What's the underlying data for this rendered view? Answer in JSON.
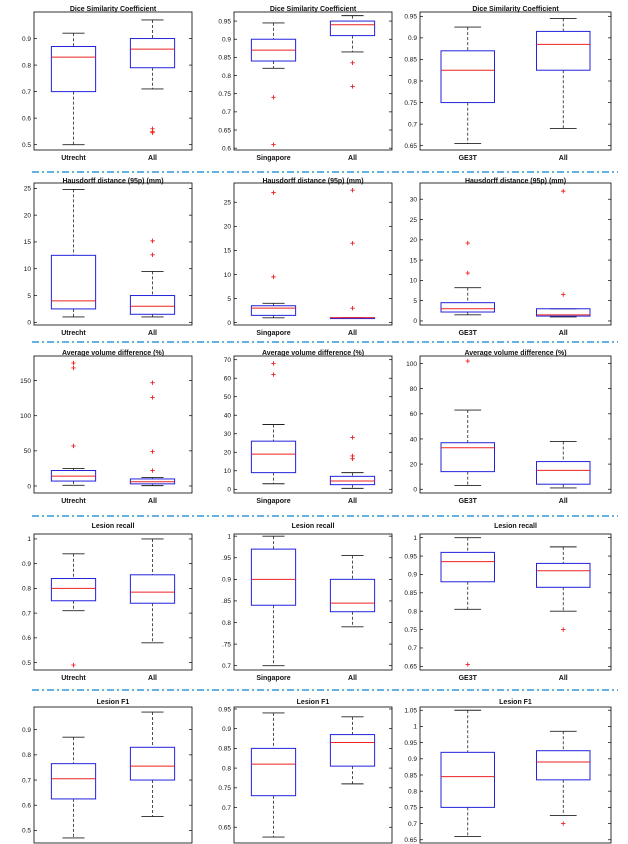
{
  "chart_data": [
    {
      "type": "box",
      "title": "Dice Similarity Coefficient",
      "categories": [
        "Utrecht",
        "All"
      ],
      "ylim": [
        0.48,
        1.0
      ],
      "yticks": [
        0.5,
        0.6,
        0.7,
        0.8,
        0.9
      ],
      "ytick_labels": [
        "0.5",
        "0.6",
        "0.7",
        "0.8",
        "0.9"
      ],
      "boxes": [
        {
          "whisker_low": 0.5,
          "q1": 0.7,
          "median": 0.83,
          "q3": 0.87,
          "whisker_high": 0.92,
          "outliers": []
        },
        {
          "whisker_low": 0.71,
          "q1": 0.79,
          "median": 0.86,
          "q3": 0.9,
          "whisker_high": 0.97,
          "outliers": [
            0.56,
            0.55,
            0.545
          ]
        }
      ]
    },
    {
      "type": "box",
      "title": "Dice Similarity Coefficient",
      "categories": [
        "Singapore",
        "All"
      ],
      "ylim": [
        0.595,
        0.975
      ],
      "yticks": [
        0.6,
        0.65,
        0.7,
        0.75,
        0.8,
        0.85,
        0.9,
        0.95
      ],
      "ytick_labels": [
        "0.6",
        "0.65",
        "0.7",
        "0.75",
        "0.8",
        "0.85",
        "0.9",
        "0.95"
      ],
      "boxes": [
        {
          "whisker_low": 0.82,
          "q1": 0.84,
          "median": 0.87,
          "q3": 0.9,
          "whisker_high": 0.945,
          "outliers": [
            0.74,
            0.61
          ]
        },
        {
          "whisker_low": 0.865,
          "q1": 0.91,
          "median": 0.94,
          "q3": 0.95,
          "whisker_high": 0.965,
          "outliers": [
            0.835,
            0.77
          ]
        }
      ]
    },
    {
      "type": "box",
      "title": "Dice Similarity Coefficient",
      "categories": [
        "GE3T",
        "All"
      ],
      "ylim": [
        0.64,
        0.96
      ],
      "yticks": [
        0.65,
        0.7,
        0.75,
        0.8,
        0.85,
        0.9,
        0.95
      ],
      "ytick_labels": [
        "0.65",
        "0.7",
        "0.75",
        "0.8",
        "0.85",
        "0.9",
        "0.95"
      ],
      "boxes": [
        {
          "whisker_low": 0.655,
          "q1": 0.75,
          "median": 0.825,
          "q3": 0.87,
          "whisker_high": 0.925,
          "outliers": []
        },
        {
          "whisker_low": 0.69,
          "q1": 0.825,
          "median": 0.885,
          "q3": 0.915,
          "whisker_high": 0.945,
          "outliers": []
        }
      ]
    },
    {
      "type": "box",
      "title": "Hausdorff distance (95p) (mm)",
      "categories": [
        "Utrecht",
        "All"
      ],
      "ylim": [
        -0.5,
        26
      ],
      "yticks": [
        0,
        5,
        10,
        15,
        20,
        25
      ],
      "ytick_labels": [
        "0",
        "5",
        "10",
        "15",
        "20",
        "25"
      ],
      "boxes": [
        {
          "whisker_low": 1,
          "q1": 2.5,
          "median": 4,
          "q3": 12.5,
          "whisker_high": 24.8,
          "outliers": []
        },
        {
          "whisker_low": 1,
          "q1": 1.5,
          "median": 3,
          "q3": 5,
          "whisker_high": 9.5,
          "outliers": [
            15.2,
            12.6
          ]
        }
      ]
    },
    {
      "type": "box",
      "title": "Hausdorff distance (95p) (mm)",
      "categories": [
        "Singapore",
        "All"
      ],
      "ylim": [
        -0.5,
        29
      ],
      "yticks": [
        0,
        5,
        10,
        15,
        20,
        25
      ],
      "ytick_labels": [
        "0",
        "5",
        "10",
        "15",
        "20",
        "25"
      ],
      "boxes": [
        {
          "whisker_low": 1,
          "q1": 1.5,
          "median": 3,
          "q3": 3.5,
          "whisker_high": 4,
          "outliers": [
            27,
            9.5
          ]
        },
        {
          "whisker_low": 1,
          "q1": 1,
          "median": 1,
          "q3": 1,
          "whisker_high": 1,
          "outliers": [
            27.5,
            16.5,
            3
          ]
        }
      ]
    },
    {
      "type": "box",
      "title": "Hausdorff distance (95p) (mm)",
      "categories": [
        "GE3T",
        "All"
      ],
      "ylim": [
        -1,
        34
      ],
      "yticks": [
        0,
        5,
        10,
        15,
        20,
        25,
        30
      ],
      "ytick_labels": [
        "0",
        "5",
        "10",
        "15",
        "20",
        "25",
        "30"
      ],
      "boxes": [
        {
          "whisker_low": 1.5,
          "q1": 2.2,
          "median": 3,
          "q3": 4.5,
          "whisker_high": 8.2,
          "outliers": [
            19.2,
            11.8
          ]
        },
        {
          "whisker_low": 1,
          "q1": 1.2,
          "median": 1.5,
          "q3": 3,
          "whisker_high": 3,
          "outliers": [
            32,
            6.5
          ]
        }
      ]
    },
    {
      "type": "box",
      "title": "Average volume difference  (%)",
      "categories": [
        "Utrecht",
        "All"
      ],
      "ylim": [
        -10,
        185
      ],
      "yticks": [
        0,
        50,
        100,
        150
      ],
      "ytick_labels": [
        "0",
        "50",
        "100",
        "150"
      ],
      "boxes": [
        {
          "whisker_low": 1,
          "q1": 7,
          "median": 14,
          "q3": 22,
          "whisker_high": 25,
          "outliers": [
            175,
            168,
            57
          ]
        },
        {
          "whisker_low": 0.5,
          "q1": 3,
          "median": 6,
          "q3": 10,
          "whisker_high": 12,
          "outliers": [
            147,
            126,
            49,
            22
          ]
        }
      ]
    },
    {
      "type": "box",
      "title": "Average volume difference  (%)",
      "categories": [
        "Singapore",
        "All"
      ],
      "ylim": [
        -2,
        72
      ],
      "yticks": [
        0,
        10,
        20,
        30,
        40,
        50,
        60,
        70
      ],
      "ytick_labels": [
        "0",
        "10",
        "20",
        "30",
        "40",
        "50",
        "60",
        "70"
      ],
      "boxes": [
        {
          "whisker_low": 3,
          "q1": 9,
          "median": 19,
          "q3": 26,
          "whisker_high": 35,
          "outliers": [
            68,
            62
          ]
        },
        {
          "whisker_low": 0.5,
          "q1": 2.5,
          "median": 4.5,
          "q3": 7,
          "whisker_high": 9,
          "outliers": [
            28,
            18,
            16.5
          ]
        }
      ]
    },
    {
      "type": "box",
      "title": "Average volume difference  (%)",
      "categories": [
        "GE3T",
        "All"
      ],
      "ylim": [
        -3,
        106
      ],
      "yticks": [
        0,
        20,
        40,
        60,
        80,
        100
      ],
      "ytick_labels": [
        "0",
        "20",
        "40",
        "60",
        "80",
        "100"
      ],
      "boxes": [
        {
          "whisker_low": 3,
          "q1": 14,
          "median": 33,
          "q3": 37,
          "whisker_high": 63,
          "outliers": [
            102
          ]
        },
        {
          "whisker_low": 1,
          "q1": 4,
          "median": 15,
          "q3": 22,
          "whisker_high": 38,
          "outliers": []
        }
      ]
    },
    {
      "type": "box",
      "title": "Lesion recall",
      "categories": [
        "Utrecht",
        "All"
      ],
      "ylim": [
        0.47,
        1.02
      ],
      "yticks": [
        0.5,
        0.6,
        0.7,
        0.8,
        0.9,
        1.0
      ],
      "ytick_labels": [
        "0.5",
        "0.6",
        "0.7",
        "0.8",
        "0.9",
        "1"
      ],
      "boxes": [
        {
          "whisker_low": 0.71,
          "q1": 0.75,
          "median": 0.8,
          "q3": 0.84,
          "whisker_high": 0.94,
          "outliers": [
            0.49
          ]
        },
        {
          "whisker_low": 0.58,
          "q1": 0.74,
          "median": 0.785,
          "q3": 0.855,
          "whisker_high": 1.0,
          "outliers": []
        }
      ]
    },
    {
      "type": "box",
      "title": "Lesion recall",
      "categories": [
        "Singapore",
        "All"
      ],
      "ylim": [
        0.69,
        1.005
      ],
      "yticks": [
        0.7,
        0.75,
        0.8,
        0.85,
        0.9,
        0.95,
        1.0
      ],
      "ytick_labels": [
        "0.7",
        ".75",
        "0.8",
        ".85",
        "0.9",
        ".95",
        "1"
      ],
      "boxes": [
        {
          "whisker_low": 0.7,
          "q1": 0.84,
          "median": 0.9,
          "q3": 0.97,
          "whisker_high": 1.0,
          "outliers": []
        },
        {
          "whisker_low": 0.79,
          "q1": 0.825,
          "median": 0.845,
          "q3": 0.9,
          "whisker_high": 0.955,
          "outliers": []
        }
      ]
    },
    {
      "type": "box",
      "title": "Lesion recall",
      "categories": [
        "GE3T",
        "All"
      ],
      "ylim": [
        0.64,
        1.01
      ],
      "yticks": [
        0.65,
        0.7,
        0.75,
        0.8,
        0.85,
        0.9,
        0.95,
        1.0
      ],
      "ytick_labels": [
        "0.65",
        "0.7",
        "0.75",
        "0.8",
        "0.85",
        "0.9",
        "0.95",
        "1"
      ],
      "boxes": [
        {
          "whisker_low": 0.805,
          "q1": 0.88,
          "median": 0.935,
          "q3": 0.96,
          "whisker_high": 1.0,
          "outliers": [
            0.655
          ]
        },
        {
          "whisker_low": 0.8,
          "q1": 0.865,
          "median": 0.91,
          "q3": 0.93,
          "whisker_high": 0.975,
          "outliers": [
            0.75
          ]
        }
      ]
    },
    {
      "type": "box",
      "title": "Lesion F1",
      "categories": [
        "",
        ""
      ],
      "ylim": [
        0.45,
        0.99
      ],
      "yticks": [
        0.5,
        0.6,
        0.7,
        0.8,
        0.9
      ],
      "ytick_labels": [
        "0.5",
        "0.6",
        "0.7",
        "0.8",
        "0.9"
      ],
      "boxes": [
        {
          "whisker_low": 0.47,
          "q1": 0.625,
          "median": 0.705,
          "q3": 0.765,
          "whisker_high": 0.87,
          "outliers": []
        },
        {
          "whisker_low": 0.555,
          "q1": 0.7,
          "median": 0.755,
          "q3": 0.83,
          "whisker_high": 0.97,
          "outliers": []
        }
      ]
    },
    {
      "type": "box",
      "title": "Lesion F1",
      "categories": [
        "",
        ""
      ],
      "ylim": [
        0.61,
        0.955
      ],
      "yticks": [
        0.65,
        0.7,
        0.75,
        0.8,
        0.85,
        0.9,
        0.95
      ],
      "ytick_labels": [
        "0.65",
        "0.7",
        "0.75",
        "0.8",
        "0.85",
        "0.9",
        "0.95"
      ],
      "boxes": [
        {
          "whisker_low": 0.625,
          "q1": 0.73,
          "median": 0.81,
          "q3": 0.85,
          "whisker_high": 0.94,
          "outliers": []
        },
        {
          "whisker_low": 0.76,
          "q1": 0.805,
          "median": 0.865,
          "q3": 0.885,
          "whisker_high": 0.93,
          "outliers": []
        }
      ]
    },
    {
      "type": "box",
      "title": "Lesion F1",
      "categories": [
        "",
        ""
      ],
      "ylim": [
        0.64,
        1.06
      ],
      "yticks": [
        0.65,
        0.7,
        0.75,
        0.8,
        0.85,
        0.9,
        0.95,
        1.0,
        1.05
      ],
      "ytick_labels": [
        "0.65",
        "0.7",
        "0.75",
        "0.8",
        "0.85",
        "0.9",
        "0.95",
        "1",
        "1.05"
      ],
      "boxes": [
        {
          "whisker_low": 0.66,
          "q1": 0.75,
          "median": 0.845,
          "q3": 0.92,
          "whisker_high": 1.05,
          "outliers": []
        },
        {
          "whisker_low": 0.725,
          "q1": 0.835,
          "median": 0.89,
          "q3": 0.925,
          "whisker_high": 0.985,
          "outliers": [
            0.7
          ]
        }
      ]
    }
  ],
  "colors": {
    "box": "#2222dd",
    "median": "#ee2222",
    "whisker": "#222222",
    "outlier": "#ee2222",
    "separator": "#3399dd",
    "frame": "#000000"
  }
}
